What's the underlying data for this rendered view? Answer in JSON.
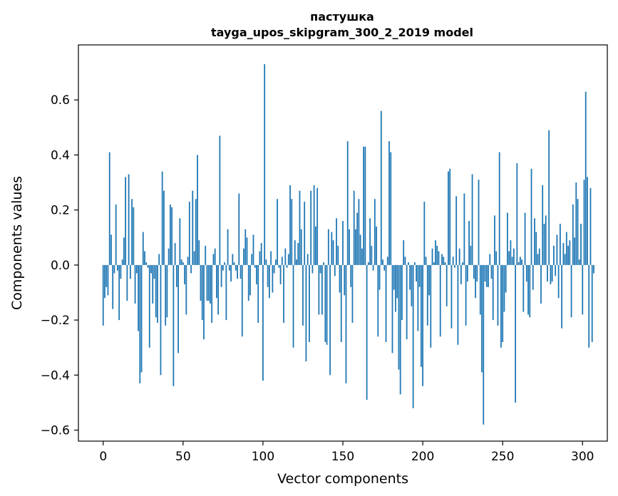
{
  "chart_data": {
    "type": "bar",
    "title": "пастушка",
    "subtitle": "tayga_upos_skipgram_300_2_2019 model",
    "xlabel": "Vector components",
    "ylabel": "Components values",
    "xlim": [
      -15.5,
      315.5
    ],
    "ylim": [
      -0.64,
      0.8
    ],
    "xticks": [
      0,
      50,
      100,
      150,
      200,
      250,
      300
    ],
    "xtick_labels": [
      "0",
      "50",
      "100",
      "150",
      "200",
      "250",
      "300"
    ],
    "yticks": [
      -0.6,
      -0.4,
      -0.2,
      0.0,
      0.2,
      0.4,
      0.6
    ],
    "ytick_labels": [
      "−0.6",
      "−0.4",
      "−0.2",
      "0.0",
      "0.2",
      "0.4",
      "0.6"
    ],
    "grid": false,
    "bar_color": "#1f77b4",
    "values": [
      -0.22,
      -0.12,
      -0.08,
      -0.11,
      0.41,
      0.11,
      -0.16,
      -0.03,
      0.22,
      -0.02,
      -0.2,
      -0.05,
      0.02,
      0.1,
      0.32,
      -0.13,
      0.33,
      -0.05,
      0.24,
      0.21,
      -0.14,
      -0.03,
      -0.24,
      -0.43,
      -0.39,
      0.12,
      0.05,
      0.01,
      -0.01,
      -0.3,
      -0.03,
      -0.14,
      -0.05,
      -0.19,
      -0.21,
      0.04,
      -0.4,
      0.34,
      0.27,
      -0.22,
      -0.19,
      0.06,
      0.22,
      0.21,
      -0.44,
      0.08,
      -0.08,
      -0.32,
      0.17,
      0.02,
      0.01,
      -0.07,
      -0.18,
      0.03,
      0.23,
      -0.03,
      0.27,
      0.05,
      0.24,
      0.4,
      0.09,
      -0.13,
      -0.2,
      -0.27,
      0.07,
      -0.13,
      -0.13,
      -0.14,
      -0.21,
      0.04,
      0.06,
      -0.12,
      -0.18,
      0.47,
      -0.08,
      -0.02,
      0.01,
      -0.2,
      0.13,
      -0.02,
      -0.06,
      0.04,
      0.01,
      -0.02,
      -0.05,
      0.26,
      -0.05,
      -0.26,
      0.06,
      0.13,
      0.1,
      -0.13,
      -0.11,
      0.04,
      0.11,
      -0.01,
      -0.07,
      -0.21,
      0.05,
      0.08,
      -0.42,
      0.73,
      0.02,
      -0.08,
      -0.12,
      0.05,
      -0.1,
      -0.03,
      0.02,
      0.24,
      -0.01,
      -0.07,
      0.03,
      -0.21,
      0.06,
      -0.01,
      0.04,
      0.29,
      0.24,
      -0.3,
      0.09,
      0.02,
      0.08,
      0.27,
      0.13,
      -0.22,
      0.23,
      -0.35,
      0.04,
      -0.28,
      0.27,
      -0.03,
      0.29,
      0.14,
      0.28,
      -0.18,
      -0.03,
      -0.18,
      0.01,
      -0.28,
      -0.29,
      0.13,
      -0.4,
      0.12,
      0.09,
      -0.04,
      0.17,
      0.07,
      -0.1,
      -0.28,
      0.16,
      -0.11,
      -0.43,
      0.45,
      0.13,
      -0.08,
      -0.21,
      0.27,
      0.13,
      0.19,
      0.24,
      0.11,
      0.06,
      0.43,
      0.43,
      -0.49,
      0.01,
      0.17,
      0.07,
      -0.02,
      0.24,
      0.14,
      -0.26,
      -0.09,
      0.56,
      0.02,
      -0.02,
      -0.28,
      0.03,
      0.45,
      0.41,
      -0.32,
      -0.09,
      -0.17,
      -0.12,
      -0.38,
      -0.47,
      -0.2,
      0.09,
      0.03,
      -0.27,
      0.01,
      -0.09,
      -0.15,
      -0.52,
      0.01,
      -0.06,
      -0.24,
      -0.08,
      -0.37,
      -0.44,
      0.23,
      0.03,
      -0.22,
      -0.11,
      -0.3,
      0.06,
      0.01,
      0.09,
      0.07,
      0.05,
      -0.26,
      0.04,
      0.03,
      0.01,
      -0.15,
      0.34,
      0.35,
      -0.23,
      0.03,
      -0.01,
      0.25,
      -0.29,
      0.06,
      -0.07,
      0.01,
      0.26,
      -0.22,
      -0.06,
      0.16,
      0.07,
      0.33,
      -0.05,
      -0.12,
      -0.06,
      0.31,
      -0.18,
      -0.39,
      -0.58,
      -0.06,
      -0.08,
      -0.08,
      0.04,
      -0.05,
      -0.2,
      0.18,
      0.05,
      -0.22,
      0.41,
      -0.3,
      -0.28,
      -0.17,
      -0.1,
      0.19,
      0.05,
      0.09,
      0.03,
      0.06,
      -0.5,
      0.37,
      0.01,
      0.03,
      0.02,
      -0.17,
      0.19,
      -0.06,
      -0.18,
      -0.19,
      0.35,
      -0.09,
      0.17,
      0.12,
      0.04,
      0.06,
      -0.14,
      0.29,
      0.15,
      0.18,
      -0.06,
      0.49,
      -0.07,
      -0.06,
      0.07,
      -0.04,
      0.11,
      -0.12,
      0.15,
      -0.23,
      0.08,
      0.04,
      0.12,
      0.07,
      0.09,
      -0.19,
      0.22,
      0.1,
      0.3,
      0.24,
      0.02,
      0.15,
      -0.18,
      0.31,
      0.63,
      0.32,
      -0.3,
      0.28,
      -0.28,
      -0.03
    ]
  }
}
